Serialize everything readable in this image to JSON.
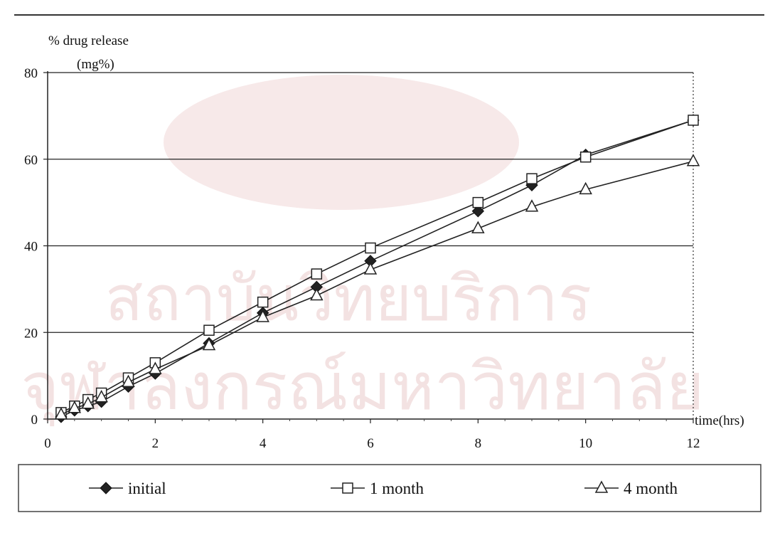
{
  "chart_data": {
    "type": "line",
    "title": "",
    "ylabel_line1": "% drug release",
    "ylabel_line2": "(mg%)",
    "xlabel": "time(hrs)",
    "xlim": [
      0,
      12
    ],
    "ylim": [
      0,
      80
    ],
    "xticks": [
      0,
      2,
      4,
      6,
      8,
      10,
      12
    ],
    "yticks": [
      0,
      20,
      40,
      60,
      80
    ],
    "grid": "horizontal",
    "legend_position": "bottom",
    "series": [
      {
        "name": "initial",
        "marker": "diamond-filled",
        "x": [
          0.25,
          0.5,
          0.75,
          1,
          1.5,
          2,
          3,
          4,
          5,
          6,
          8,
          9,
          10,
          12
        ],
        "values": [
          0.5,
          2,
          3,
          4,
          7.5,
          10.5,
          17.5,
          24.5,
          30.5,
          36.5,
          48,
          54,
          61,
          69
        ]
      },
      {
        "name": "1 month",
        "marker": "square-open",
        "x": [
          0.25,
          0.5,
          0.75,
          1,
          1.5,
          2,
          3,
          4,
          5,
          6,
          8,
          9,
          10,
          12
        ],
        "values": [
          1.5,
          3,
          4.5,
          6,
          9.5,
          13,
          20.5,
          27,
          33.5,
          39.5,
          50,
          55.5,
          60.5,
          69
        ]
      },
      {
        "name": "4 month",
        "marker": "triangle-open",
        "x": [
          0.25,
          0.5,
          0.75,
          1,
          1.5,
          2,
          3,
          4,
          5,
          6,
          8,
          9,
          10,
          12
        ],
        "values": [
          1,
          2.5,
          3.5,
          5,
          8.5,
          11.5,
          17,
          23.5,
          28.5,
          34.5,
          44,
          49,
          53,
          59.5
        ]
      }
    ]
  },
  "watermark": {
    "line1": "สถาบันวิทยบริการ",
    "line2": "จุฬาลงกรณ์มหาวิทยาลัย"
  }
}
